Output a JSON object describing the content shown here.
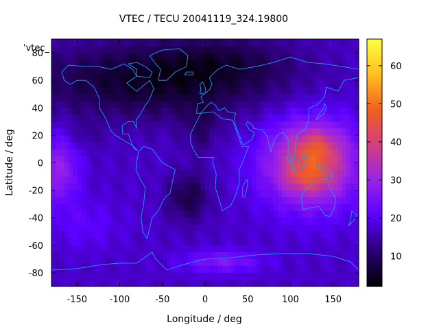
{
  "chart_data": {
    "type": "heatmap",
    "title": "VTEC / TECU 20041119_324.19800",
    "xlabel": "Longitude / deg",
    "ylabel": "Latitude / deg",
    "series_label": "'vtec_",
    "xlim": [
      -180,
      180
    ],
    "ylim": [
      -90,
      90
    ],
    "xticks": [
      -150,
      -100,
      -50,
      0,
      50,
      100,
      150
    ],
    "yticks": [
      -80,
      -60,
      -40,
      -20,
      0,
      20,
      40,
      60,
      80
    ],
    "colorbar": {
      "range": [
        2,
        67
      ],
      "ticks": [
        10,
        20,
        30,
        40,
        50,
        60
      ],
      "colors": [
        "#000000",
        "#2a0070",
        "#5a00ff",
        "#9a22e8",
        "#d23e80",
        "#f06020",
        "#ffc020",
        "#ffff40"
      ]
    },
    "coastline_color": "#1e9bff",
    "grid": false
  }
}
